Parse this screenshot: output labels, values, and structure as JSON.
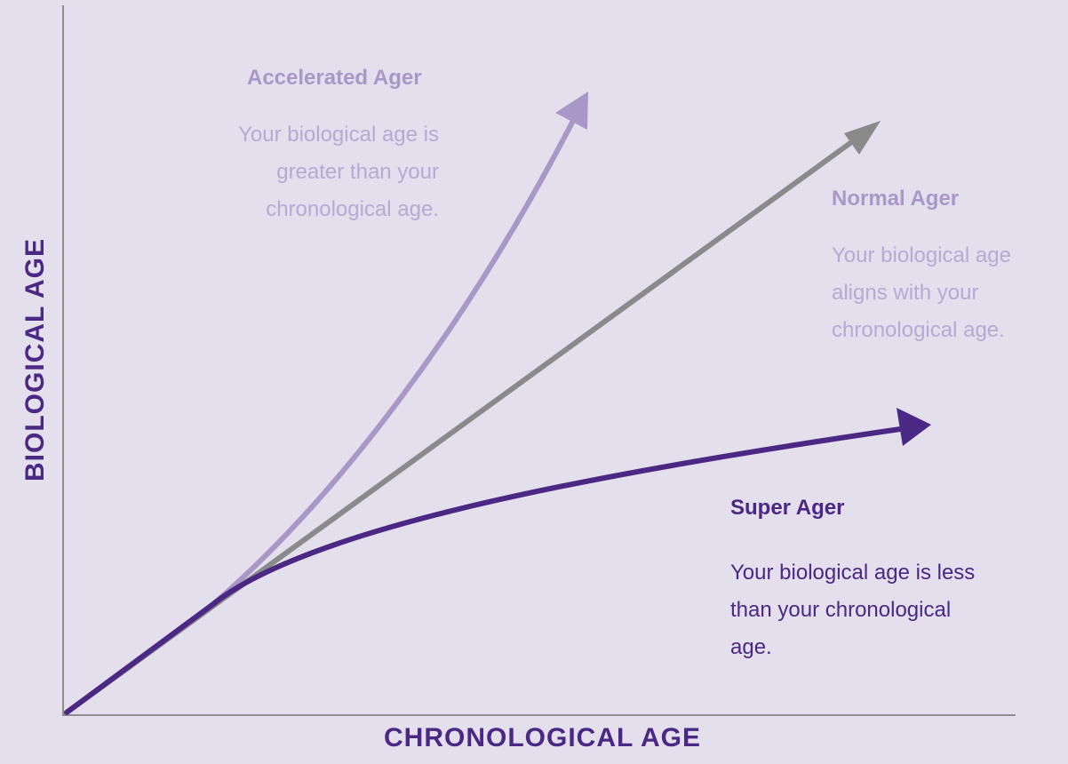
{
  "axes": {
    "x_label": "CHRONOLOGICAL AGE",
    "y_label": "BIOLOGICAL AGE"
  },
  "colors": {
    "background": "#e3dfed",
    "axis": "#8e8e8e",
    "accelerated": "#a898c7",
    "normal": "#8a8a8a",
    "super": "#4a2883"
  },
  "curves": {
    "accelerated": {
      "title": "Accelerated Ager",
      "description": "Your biological age is greater than your chronological age."
    },
    "normal": {
      "title": "Normal Ager",
      "description": "Your biological age aligns with your chronological age."
    },
    "super": {
      "title": "Super Ager",
      "description": "Your biological age is less than your chronological age."
    }
  }
}
